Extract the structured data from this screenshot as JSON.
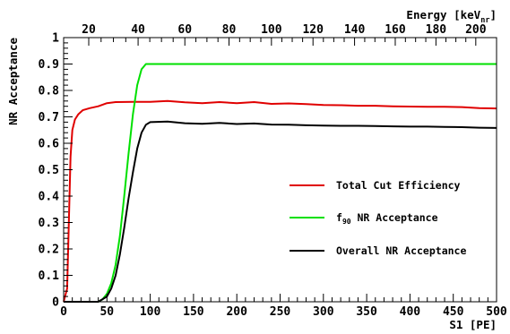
{
  "chart_data": {
    "type": "line",
    "xlabel": "S1 [PE]",
    "ylabel": "NR Acceptance",
    "top_axis_label": {
      "main": "Energy [keV",
      "sub": "nr",
      "close": "]"
    },
    "xlim": [
      0,
      500
    ],
    "ylim": [
      0,
      1
    ],
    "x_ticks": [
      "0",
      "50",
      "100",
      "150",
      "200",
      "250",
      "300",
      "350",
      "400",
      "450",
      "500"
    ],
    "y_ticks": [
      "0",
      "0.1",
      "0.2",
      "0.3",
      "0.4",
      "0.5",
      "0.6",
      "0.7",
      "0.8",
      "0.9",
      "1"
    ],
    "top_ticks": [
      {
        "label": "20",
        "s1": 29
      },
      {
        "label": "40",
        "s1": 86
      },
      {
        "label": "60",
        "s1": 140
      },
      {
        "label": "80",
        "s1": 191
      },
      {
        "label": "100",
        "s1": 240
      },
      {
        "label": "120",
        "s1": 288
      },
      {
        "label": "140",
        "s1": 336
      },
      {
        "label": "160",
        "s1": 383
      },
      {
        "label": "180",
        "s1": 430
      },
      {
        "label": "200",
        "s1": 476
      }
    ],
    "legend_position": "right",
    "grid": false,
    "series": [
      {
        "name": "Total Cut Efficiency",
        "color": "#e00000",
        "points": [
          [
            0,
            0
          ],
          [
            4,
            0.05
          ],
          [
            6,
            0.3
          ],
          [
            8,
            0.55
          ],
          [
            10,
            0.65
          ],
          [
            13,
            0.69
          ],
          [
            17,
            0.71
          ],
          [
            22,
            0.725
          ],
          [
            30,
            0.733
          ],
          [
            40,
            0.74
          ],
          [
            50,
            0.752
          ],
          [
            60,
            0.756
          ],
          [
            80,
            0.757
          ],
          [
            100,
            0.757
          ],
          [
            120,
            0.76
          ],
          [
            140,
            0.755
          ],
          [
            160,
            0.752
          ],
          [
            180,
            0.756
          ],
          [
            200,
            0.752
          ],
          [
            220,
            0.756
          ],
          [
            240,
            0.749
          ],
          [
            260,
            0.751
          ],
          [
            280,
            0.748
          ],
          [
            300,
            0.745
          ],
          [
            320,
            0.744
          ],
          [
            340,
            0.742
          ],
          [
            360,
            0.742
          ],
          [
            380,
            0.74
          ],
          [
            400,
            0.739
          ],
          [
            420,
            0.738
          ],
          [
            440,
            0.738
          ],
          [
            460,
            0.737
          ],
          [
            480,
            0.733
          ],
          [
            500,
            0.732
          ]
        ]
      },
      {
        "name": "f90 NR Acceptance",
        "name_main": "f",
        "name_sub": "90",
        "name_rest": " NR Acceptance",
        "color": "#00e000",
        "points": [
          [
            0,
            0
          ],
          [
            40,
            0
          ],
          [
            45,
            0.01
          ],
          [
            50,
            0.03
          ],
          [
            55,
            0.07
          ],
          [
            60,
            0.14
          ],
          [
            65,
            0.25
          ],
          [
            70,
            0.4
          ],
          [
            75,
            0.56
          ],
          [
            80,
            0.71
          ],
          [
            85,
            0.82
          ],
          [
            90,
            0.88
          ],
          [
            95,
            0.9
          ],
          [
            100,
            0.9
          ],
          [
            500,
            0.9
          ]
        ]
      },
      {
        "name": "Overall NR Acceptance",
        "color": "#000000",
        "points": [
          [
            0,
            0
          ],
          [
            40,
            0
          ],
          [
            45,
            0.01
          ],
          [
            50,
            0.02
          ],
          [
            55,
            0.05
          ],
          [
            60,
            0.1
          ],
          [
            65,
            0.18
          ],
          [
            70,
            0.28
          ],
          [
            75,
            0.39
          ],
          [
            80,
            0.49
          ],
          [
            85,
            0.58
          ],
          [
            90,
            0.64
          ],
          [
            95,
            0.67
          ],
          [
            100,
            0.68
          ],
          [
            120,
            0.682
          ],
          [
            140,
            0.676
          ],
          [
            160,
            0.674
          ],
          [
            180,
            0.677
          ],
          [
            200,
            0.673
          ],
          [
            220,
            0.675
          ],
          [
            240,
            0.671
          ],
          [
            260,
            0.67
          ],
          [
            280,
            0.668
          ],
          [
            300,
            0.667
          ],
          [
            320,
            0.666
          ],
          [
            340,
            0.666
          ],
          [
            360,
            0.665
          ],
          [
            380,
            0.664
          ],
          [
            400,
            0.663
          ],
          [
            420,
            0.663
          ],
          [
            440,
            0.662
          ],
          [
            460,
            0.661
          ],
          [
            480,
            0.659
          ],
          [
            500,
            0.658
          ]
        ]
      }
    ]
  }
}
